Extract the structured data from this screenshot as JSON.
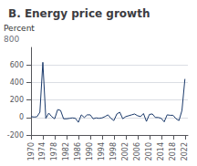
{
  "chart_data": {
    "type": "line",
    "title": "B. Energy price growth",
    "ylabel": "Percent",
    "annotations": [
      {
        "text": "800"
      }
    ],
    "x": [
      1970,
      1971,
      1972,
      1973,
      1974,
      1975,
      1976,
      1977,
      1978,
      1979,
      1980,
      1981,
      1982,
      1983,
      1984,
      1985,
      1986,
      1987,
      1988,
      1989,
      1990,
      1991,
      1992,
      1993,
      1994,
      1995,
      1996,
      1997,
      1998,
      1999,
      2000,
      2001,
      2002,
      2003,
      2004,
      2005,
      2006,
      2007,
      2008,
      2009,
      2010,
      2011,
      2012,
      2013,
      2014,
      2015,
      2016,
      2017,
      2018,
      2019,
      2020,
      2021,
      2022
    ],
    "values": [
      10,
      5,
      8,
      60,
      630,
      -10,
      50,
      10,
      -15,
      90,
      80,
      -15,
      -15,
      -10,
      -5,
      -10,
      -55,
      30,
      0,
      30,
      30,
      -15,
      -5,
      -10,
      -5,
      10,
      30,
      -10,
      -35,
      40,
      60,
      -15,
      10,
      20,
      30,
      40,
      20,
      10,
      45,
      -45,
      35,
      40,
      0,
      0,
      -10,
      -50,
      30,
      25,
      25,
      -15,
      -35,
      80,
      440
    ],
    "color": "#1b3a6b",
    "xlim": [
      1970,
      2023
    ],
    "xticks": [
      1970,
      1974,
      1978,
      1982,
      1986,
      1990,
      1994,
      1998,
      2002,
      2006,
      2010,
      2014,
      2018,
      2022
    ],
    "ylim": [
      -200,
      800
    ],
    "yticks": [
      -200,
      0,
      200,
      400,
      600
    ],
    "grid": true
  }
}
